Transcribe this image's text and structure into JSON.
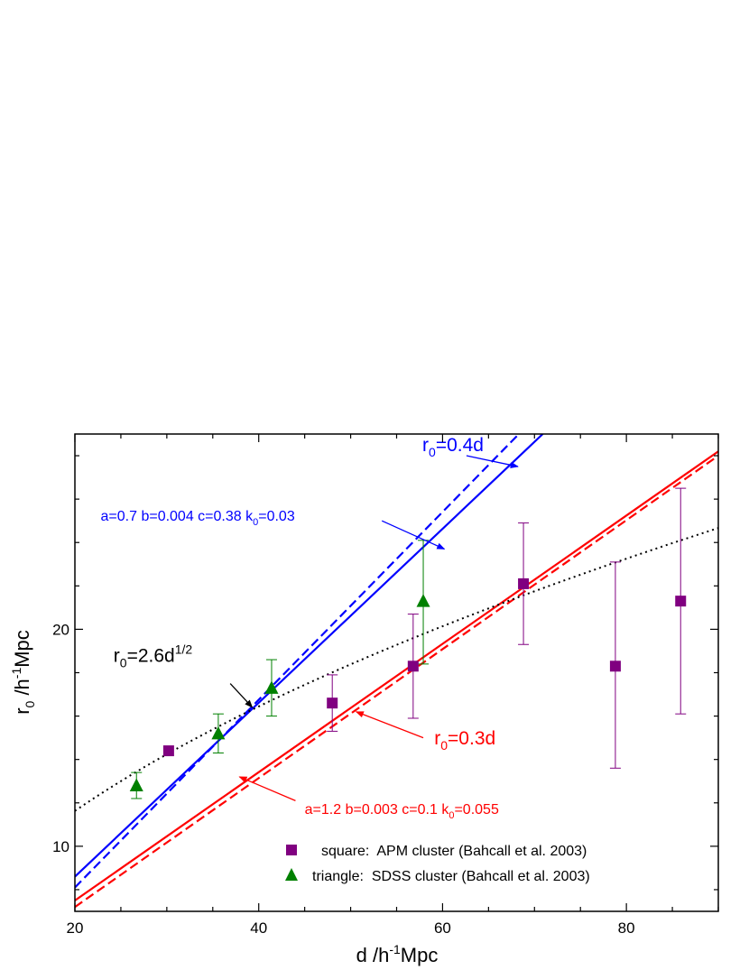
{
  "chart_data": {
    "type": "scatter",
    "xlabel": {
      "main": "d /h",
      "sup": "-1",
      "tail": "Mpc"
    },
    "ylabel": {
      "base": "r",
      "sub": "0",
      "mid": " /h",
      "sup": "-1",
      "tail": "Mpc"
    },
    "xlim": [
      20,
      90
    ],
    "ylim": [
      7.0,
      29.0
    ],
    "x_ticks": [
      20,
      40,
      60,
      80
    ],
    "y_ticks": [
      10,
      20
    ],
    "grid": false,
    "legend_position": "bottom-right",
    "legend": [
      {
        "marker": "square",
        "text": "square:  APM cluster (Bahcall et al. 2003)"
      },
      {
        "marker": "triangle",
        "text": "triangle:  SDSS cluster (Bahcall et al. 2003)"
      }
    ],
    "series": [
      {
        "name": "APM cluster (Bahcall et al. 2003)",
        "marker": "square",
        "color": "#800080",
        "points": [
          {
            "x": 30.2,
            "y": 14.4,
            "err_lo": null,
            "err_hi": null
          },
          {
            "x": 48.0,
            "y": 16.6,
            "err_lo": 15.3,
            "err_hi": 17.9
          },
          {
            "x": 56.8,
            "y": 18.3,
            "err_lo": 15.9,
            "err_hi": 20.7
          },
          {
            "x": 68.8,
            "y": 22.1,
            "err_lo": 19.3,
            "err_hi": 24.9
          },
          {
            "x": 78.8,
            "y": 18.3,
            "err_lo": 13.6,
            "err_hi": 23.1
          },
          {
            "x": 85.9,
            "y": 21.3,
            "err_lo": 16.1,
            "err_hi": 26.5
          }
        ]
      },
      {
        "name": "SDSS cluster (Bahcall et al. 2003)",
        "marker": "triangle",
        "color": "#008000",
        "points": [
          {
            "x": 26.7,
            "y": 12.8,
            "err_lo": 12.2,
            "err_hi": 13.4
          },
          {
            "x": 35.6,
            "y": 15.2,
            "err_lo": 14.3,
            "err_hi": 16.1
          },
          {
            "x": 41.4,
            "y": 17.3,
            "err_lo": 16.0,
            "err_hi": 18.6
          },
          {
            "x": 57.9,
            "y": 21.3,
            "err_lo": 18.4,
            "err_hi": 24.1
          }
        ]
      }
    ],
    "curves": [
      {
        "id": "blue-solid",
        "color": "#0000ff",
        "dash": "solid",
        "points": [
          [
            20,
            8.6
          ],
          [
            70.9,
            29.0
          ]
        ]
      },
      {
        "id": "blue-dashed",
        "color": "#0000ff",
        "dash": "dashed",
        "points": [
          [
            20,
            8.1
          ],
          [
            68.3,
            29.0
          ]
        ]
      },
      {
        "id": "red-solid",
        "color": "#ff0000",
        "dash": "solid",
        "points": [
          [
            20,
            7.5
          ],
          [
            90,
            28.2
          ]
        ]
      },
      {
        "id": "red-dashed",
        "color": "#ff0000",
        "dash": "dashed",
        "points": [
          [
            20,
            7.2
          ],
          [
            90,
            28.0
          ]
        ]
      },
      {
        "id": "black-dotted",
        "color": "#000000",
        "dash": "dotted",
        "func": "sqrt",
        "coef": 2.6,
        "x_range": [
          20,
          90
        ]
      }
    ],
    "annotations": [
      {
        "id": "blue-r0",
        "color": "#0000ff",
        "base": "r",
        "sub": "0",
        "rest": "=0.4d",
        "text_at": [
          57.8,
          28.2
        ],
        "arrow_from": [
          62.6,
          28.0
        ],
        "arrow_to": [
          68.2,
          27.5
        ]
      },
      {
        "id": "blue-params",
        "color": "#0000ff",
        "pre": "a=0.7 b=0.004 c=0.38 k",
        "sub": "0",
        "post": "=0.03",
        "text_at": [
          22.8,
          25.0
        ],
        "arrow_from": [
          53.4,
          25.0
        ],
        "arrow_to": [
          60.2,
          23.7
        ]
      },
      {
        "id": "black-r0",
        "color": "#000000",
        "base": "r",
        "sub": "0",
        "rest": "=2.6d",
        "sup": "1/2",
        "text_at": [
          24.2,
          18.5
        ],
        "arrow_from": [
          36.9,
          17.5
        ],
        "arrow_to": [
          39.3,
          16.4
        ]
      },
      {
        "id": "red-r0",
        "color": "#ff0000",
        "base": "r",
        "sub": "0",
        "rest": "=0.3d",
        "text_at": [
          59.1,
          14.7
        ],
        "arrow_from": [
          57.9,
          15.0
        ],
        "arrow_to": [
          50.6,
          16.2
        ]
      },
      {
        "id": "red-params",
        "color": "#ff0000",
        "pre": "a=1.2  b=0.003  c=0.1  k",
        "sub": "0",
        "post": "=0.055",
        "text_at": [
          45.0,
          11.5
        ],
        "arrow_from": [
          44.0,
          12.1
        ],
        "arrow_to": [
          37.9,
          13.2
        ]
      }
    ]
  }
}
